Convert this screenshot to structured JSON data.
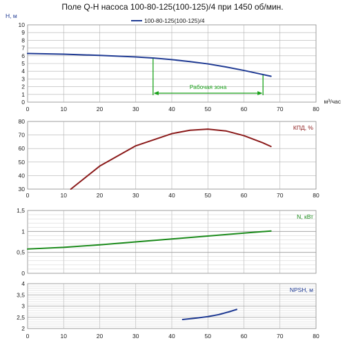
{
  "title": "Поле Q-H насоса 100-80-125(100-125)/4 при 1450 об/мин.",
  "chart_data": [
    {
      "type": "line",
      "id": "qh",
      "series": [
        {
          "name": "100-80-125(100-125)/4",
          "x": [
            0,
            10,
            20,
            30,
            35,
            40,
            45,
            50,
            55,
            60,
            65,
            67.5
          ],
          "y": [
            6.3,
            6.2,
            6.05,
            5.85,
            5.7,
            5.5,
            5.25,
            4.95,
            4.55,
            4.1,
            3.6,
            3.35
          ],
          "color": "#1f3a93"
        }
      ],
      "ylabel": "H, м",
      "xlabel": "м³/час",
      "xlim": [
        0,
        80
      ],
      "ylim": [
        0,
        10
      ],
      "yticks": [
        "0",
        "1",
        "2",
        "3",
        "4",
        "5",
        "6",
        "7",
        "8",
        "9",
        "10"
      ],
      "xticks": [
        "0",
        "10",
        "20",
        "30",
        "40",
        "50",
        "60",
        "70",
        "80"
      ],
      "legend_position": "top-center",
      "grid": true,
      "annotation": {
        "text": "Рабочая зона",
        "x_from": 34.8,
        "x_to": 65.3,
        "color": "#1aa31a"
      }
    },
    {
      "type": "line",
      "id": "eff",
      "series": [
        {
          "x": [
            12,
            20,
            30,
            40,
            45,
            50,
            55,
            60,
            65,
            67.5
          ],
          "y": [
            30,
            47,
            62,
            71,
            73.5,
            74.3,
            73,
            69.5,
            64.5,
            61.5
          ],
          "color": "#8b1a1a"
        }
      ],
      "ylabel": "КПД, %",
      "xlim": [
        0,
        80
      ],
      "ylim": [
        30,
        80
      ],
      "yticks": [
        "30",
        "40",
        "50",
        "60",
        "70",
        "80"
      ],
      "xticks": [
        "0",
        "10",
        "20",
        "30",
        "40",
        "50",
        "60",
        "70",
        "80"
      ],
      "grid": true
    },
    {
      "type": "line",
      "id": "power",
      "series": [
        {
          "x": [
            0,
            10,
            20,
            30,
            40,
            50,
            60,
            67.5
          ],
          "y": [
            0.58,
            0.62,
            0.68,
            0.75,
            0.82,
            0.89,
            0.96,
            1.01
          ],
          "color": "#1a8a1a"
        }
      ],
      "ylabel": "N, кВт",
      "xlim": [
        0,
        80
      ],
      "ylim": [
        0,
        1.5
      ],
      "yticks": [
        "0",
        "0,5",
        "1",
        "1,5"
      ],
      "grid": true
    },
    {
      "type": "line",
      "id": "npsh",
      "series": [
        {
          "x": [
            43,
            47,
            50,
            53,
            56,
            58
          ],
          "y": [
            2.4,
            2.47,
            2.53,
            2.62,
            2.75,
            2.85
          ],
          "color": "#1f3a93"
        }
      ],
      "ylabel": "NPSH, м",
      "xlim": [
        0,
        80
      ],
      "ylim": [
        2,
        4
      ],
      "yticks": [
        "2",
        "2,5",
        "3",
        "3,5",
        "4"
      ],
      "xticks": [
        "0",
        "10",
        "20",
        "30",
        "40",
        "50",
        "60",
        "70",
        "80"
      ],
      "grid": true
    }
  ]
}
